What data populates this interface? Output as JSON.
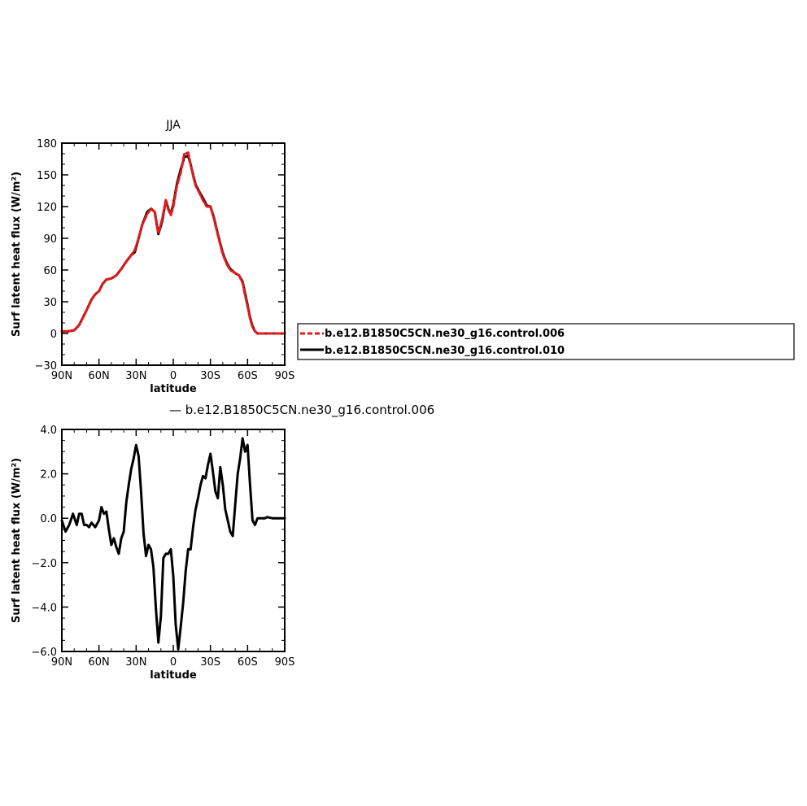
{
  "chart_data": [
    {
      "type": "line",
      "title": "JJA",
      "xlabel": "latitude",
      "ylabel": "Surf latent heat flux (W/m²)",
      "xlim": [
        90,
        -90
      ],
      "ylim": [
        -30,
        180
      ],
      "x_ticks": [
        90,
        60,
        30,
        0,
        -30,
        -60,
        -90
      ],
      "x_tick_labels": [
        "90N",
        "60N",
        "30N",
        "0",
        "30S",
        "60S",
        "90S"
      ],
      "y_ticks": [
        -30,
        0,
        30,
        60,
        90,
        120,
        150,
        180
      ],
      "y_tick_labels": [
        "−30",
        "0",
        "30",
        "60",
        "90",
        "120",
        "150",
        "180"
      ],
      "legend_position": "right",
      "series": [
        {
          "name": "b.e12.B1850C5CN.ne30_g16.control.006",
          "color": "#e41a1c",
          "style": "dashed",
          "x": [
            90,
            85,
            80,
            76,
            73,
            70,
            66,
            63,
            60,
            57,
            54,
            50,
            46,
            42,
            38,
            34,
            31,
            28,
            25,
            21,
            18,
            15,
            12,
            9,
            6,
            4,
            2,
            0,
            -3,
            -6,
            -9,
            -12,
            -14,
            -16,
            -18,
            -21,
            -24,
            -27,
            -30,
            -33,
            -36,
            -38,
            -40,
            -43,
            -46,
            -50,
            -53,
            -56,
            -58,
            -60,
            -62,
            -64,
            -66,
            -68,
            -70,
            -75,
            -80,
            -85,
            -90
          ],
          "y": [
            2,
            2,
            3,
            8,
            15,
            22,
            32,
            37,
            40,
            47,
            51,
            52,
            55,
            61,
            68,
            74,
            79,
            90,
            103,
            113,
            118,
            115,
            95,
            108,
            126,
            117,
            112,
            120,
            140,
            152,
            170,
            171,
            160,
            149,
            140,
            133,
            126,
            120,
            120,
            108,
            93,
            84,
            75,
            66,
            60,
            57,
            55,
            48,
            36,
            26,
            14,
            6,
            2,
            0,
            0,
            0,
            0,
            0,
            0
          ]
        },
        {
          "name": "b.e12.B1850C5CN.ne30_g16.control.010",
          "color": "#000000",
          "style": "solid",
          "x": [
            90,
            85,
            80,
            76,
            73,
            70,
            66,
            63,
            60,
            57,
            54,
            50,
            46,
            42,
            38,
            34,
            31,
            28,
            25,
            21,
            18,
            15,
            12,
            9,
            6,
            4,
            2,
            0,
            -3,
            -6,
            -9,
            -12,
            -14,
            -16,
            -18,
            -21,
            -24,
            -27,
            -30,
            -33,
            -36,
            -38,
            -40,
            -43,
            -46,
            -50,
            -53,
            -56,
            -58,
            -60,
            -62,
            -64,
            -66,
            -68,
            -70,
            -75,
            -80,
            -85,
            -90
          ],
          "y": [
            2,
            2,
            3,
            8,
            15,
            22,
            32,
            37,
            40,
            47,
            51,
            52,
            55,
            61,
            68,
            74,
            77,
            90,
            103,
            115,
            118,
            115,
            94,
            106,
            126,
            118,
            113,
            122,
            142,
            155,
            167,
            168,
            160,
            150,
            141,
            134,
            128,
            121,
            120,
            109,
            94,
            85,
            76,
            67,
            61,
            57,
            55,
            49,
            38,
            27,
            15,
            7,
            2,
            0,
            0,
            0,
            0,
            0,
            0
          ]
        }
      ]
    },
    {
      "type": "line",
      "title": "— b.e12.B1850C5CN.ne30_g16.control.006",
      "xlabel": "latitude",
      "ylabel": "Surf latent heat flux (W/m²)",
      "xlim": [
        90,
        -90
      ],
      "ylim": [
        -6,
        4
      ],
      "x_ticks": [
        90,
        60,
        30,
        0,
        -30,
        -60,
        -90
      ],
      "x_tick_labels": [
        "90N",
        "60N",
        "30N",
        "0",
        "30S",
        "60S",
        "90S"
      ],
      "y_ticks": [
        -6,
        -4,
        -2,
        0,
        2,
        4
      ],
      "y_tick_labels": [
        "−6.0",
        "−4.0",
        "−2.0",
        "0.0",
        "2.0",
        "4.0"
      ],
      "series": [
        {
          "color": "#000000",
          "style": "solid",
          "x": [
            90,
            87,
            84,
            81,
            78,
            76,
            74,
            72,
            70,
            68,
            66,
            63,
            60,
            58,
            56,
            54,
            52,
            50,
            48,
            46,
            44,
            42,
            40,
            38,
            36,
            34,
            32,
            30,
            28,
            26,
            24,
            22,
            20,
            18,
            16,
            14,
            12,
            10,
            8,
            6,
            4,
            2,
            0,
            -2,
            -4,
            -6,
            -8,
            -10,
            -12,
            -14,
            -16,
            -18,
            -20,
            -22,
            -24,
            -26,
            -28,
            -30,
            -32,
            -34,
            -36,
            -38,
            -40,
            -42,
            -44,
            -46,
            -48,
            -50,
            -52,
            -54,
            -56,
            -58,
            -60,
            -62,
            -64,
            -66,
            -68,
            -70,
            -72,
            -74,
            -76,
            -80,
            -85,
            -90
          ],
          "y": [
            -0.1,
            -0.6,
            -0.3,
            0.2,
            -0.3,
            0.2,
            0.2,
            -0.3,
            -0.3,
            -0.4,
            -0.2,
            -0.4,
            -0.1,
            0.5,
            0.2,
            0.3,
            -0.5,
            -1.2,
            -0.9,
            -1.3,
            -1.6,
            -0.9,
            -0.6,
            0.7,
            1.5,
            2.2,
            2.7,
            3.3,
            2.8,
            1.2,
            -0.7,
            -1.7,
            -1.2,
            -1.4,
            -2.2,
            -4.1,
            -5.6,
            -4.4,
            -1.8,
            -1.6,
            -1.6,
            -1.4,
            -2.6,
            -4.8,
            -5.9,
            -4.9,
            -3.8,
            -2.4,
            -1.4,
            -1.4,
            -0.4,
            0.4,
            0.9,
            1.5,
            1.9,
            1.8,
            2.4,
            2.9,
            2.1,
            1.2,
            0.9,
            2.3,
            1.5,
            0.4,
            -0.1,
            -0.6,
            -0.8,
            0.6,
            2.0,
            2.7,
            3.6,
            3.0,
            3.3,
            1.5,
            -0.1,
            -0.3,
            0.0,
            0.0,
            0.0,
            0.0,
            0.05,
            0.0,
            0.0,
            0.0
          ]
        }
      ]
    }
  ]
}
